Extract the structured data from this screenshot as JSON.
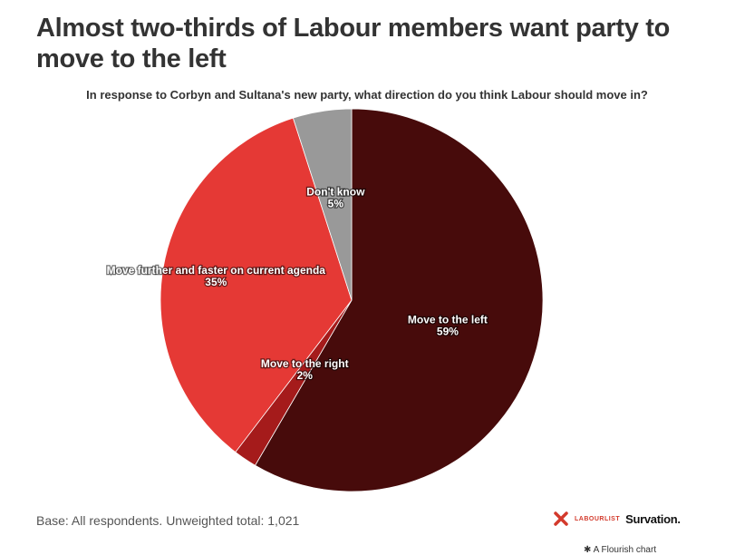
{
  "title": "Almost two-thirds of Labour members want party to move to the left",
  "subtitle": "In response to Corbyn and Sultana's new party, what direction do you think Labour should move in?",
  "footer": {
    "base": "Base: All respondents. Unweighted total: 1,021",
    "logo_labourlist": "LABOURLIST",
    "logo_survation": "Survation.",
    "flourish": "A Flourish chart"
  },
  "chart_data": {
    "type": "pie",
    "title": "Almost two-thirds of Labour members want party to move to the left",
    "subtitle": "In response to Corbyn and Sultana's new party, what direction do you think Labour should move in?",
    "start_angle_deg": 0,
    "direction": "clockwise",
    "legend": "none",
    "slices": [
      {
        "label": "Move to the left",
        "value": 59,
        "value_label": "59%",
        "color": "#470b0b"
      },
      {
        "label": "Move to the right",
        "value": 2,
        "value_label": "2%",
        "color": "#a51b1b"
      },
      {
        "label": "Move further and faster on current agenda",
        "value": 35,
        "value_label": "35%",
        "color": "#e53935"
      },
      {
        "label": "Don't know",
        "value": 5,
        "value_label": "5%",
        "color": "#999999"
      }
    ]
  }
}
